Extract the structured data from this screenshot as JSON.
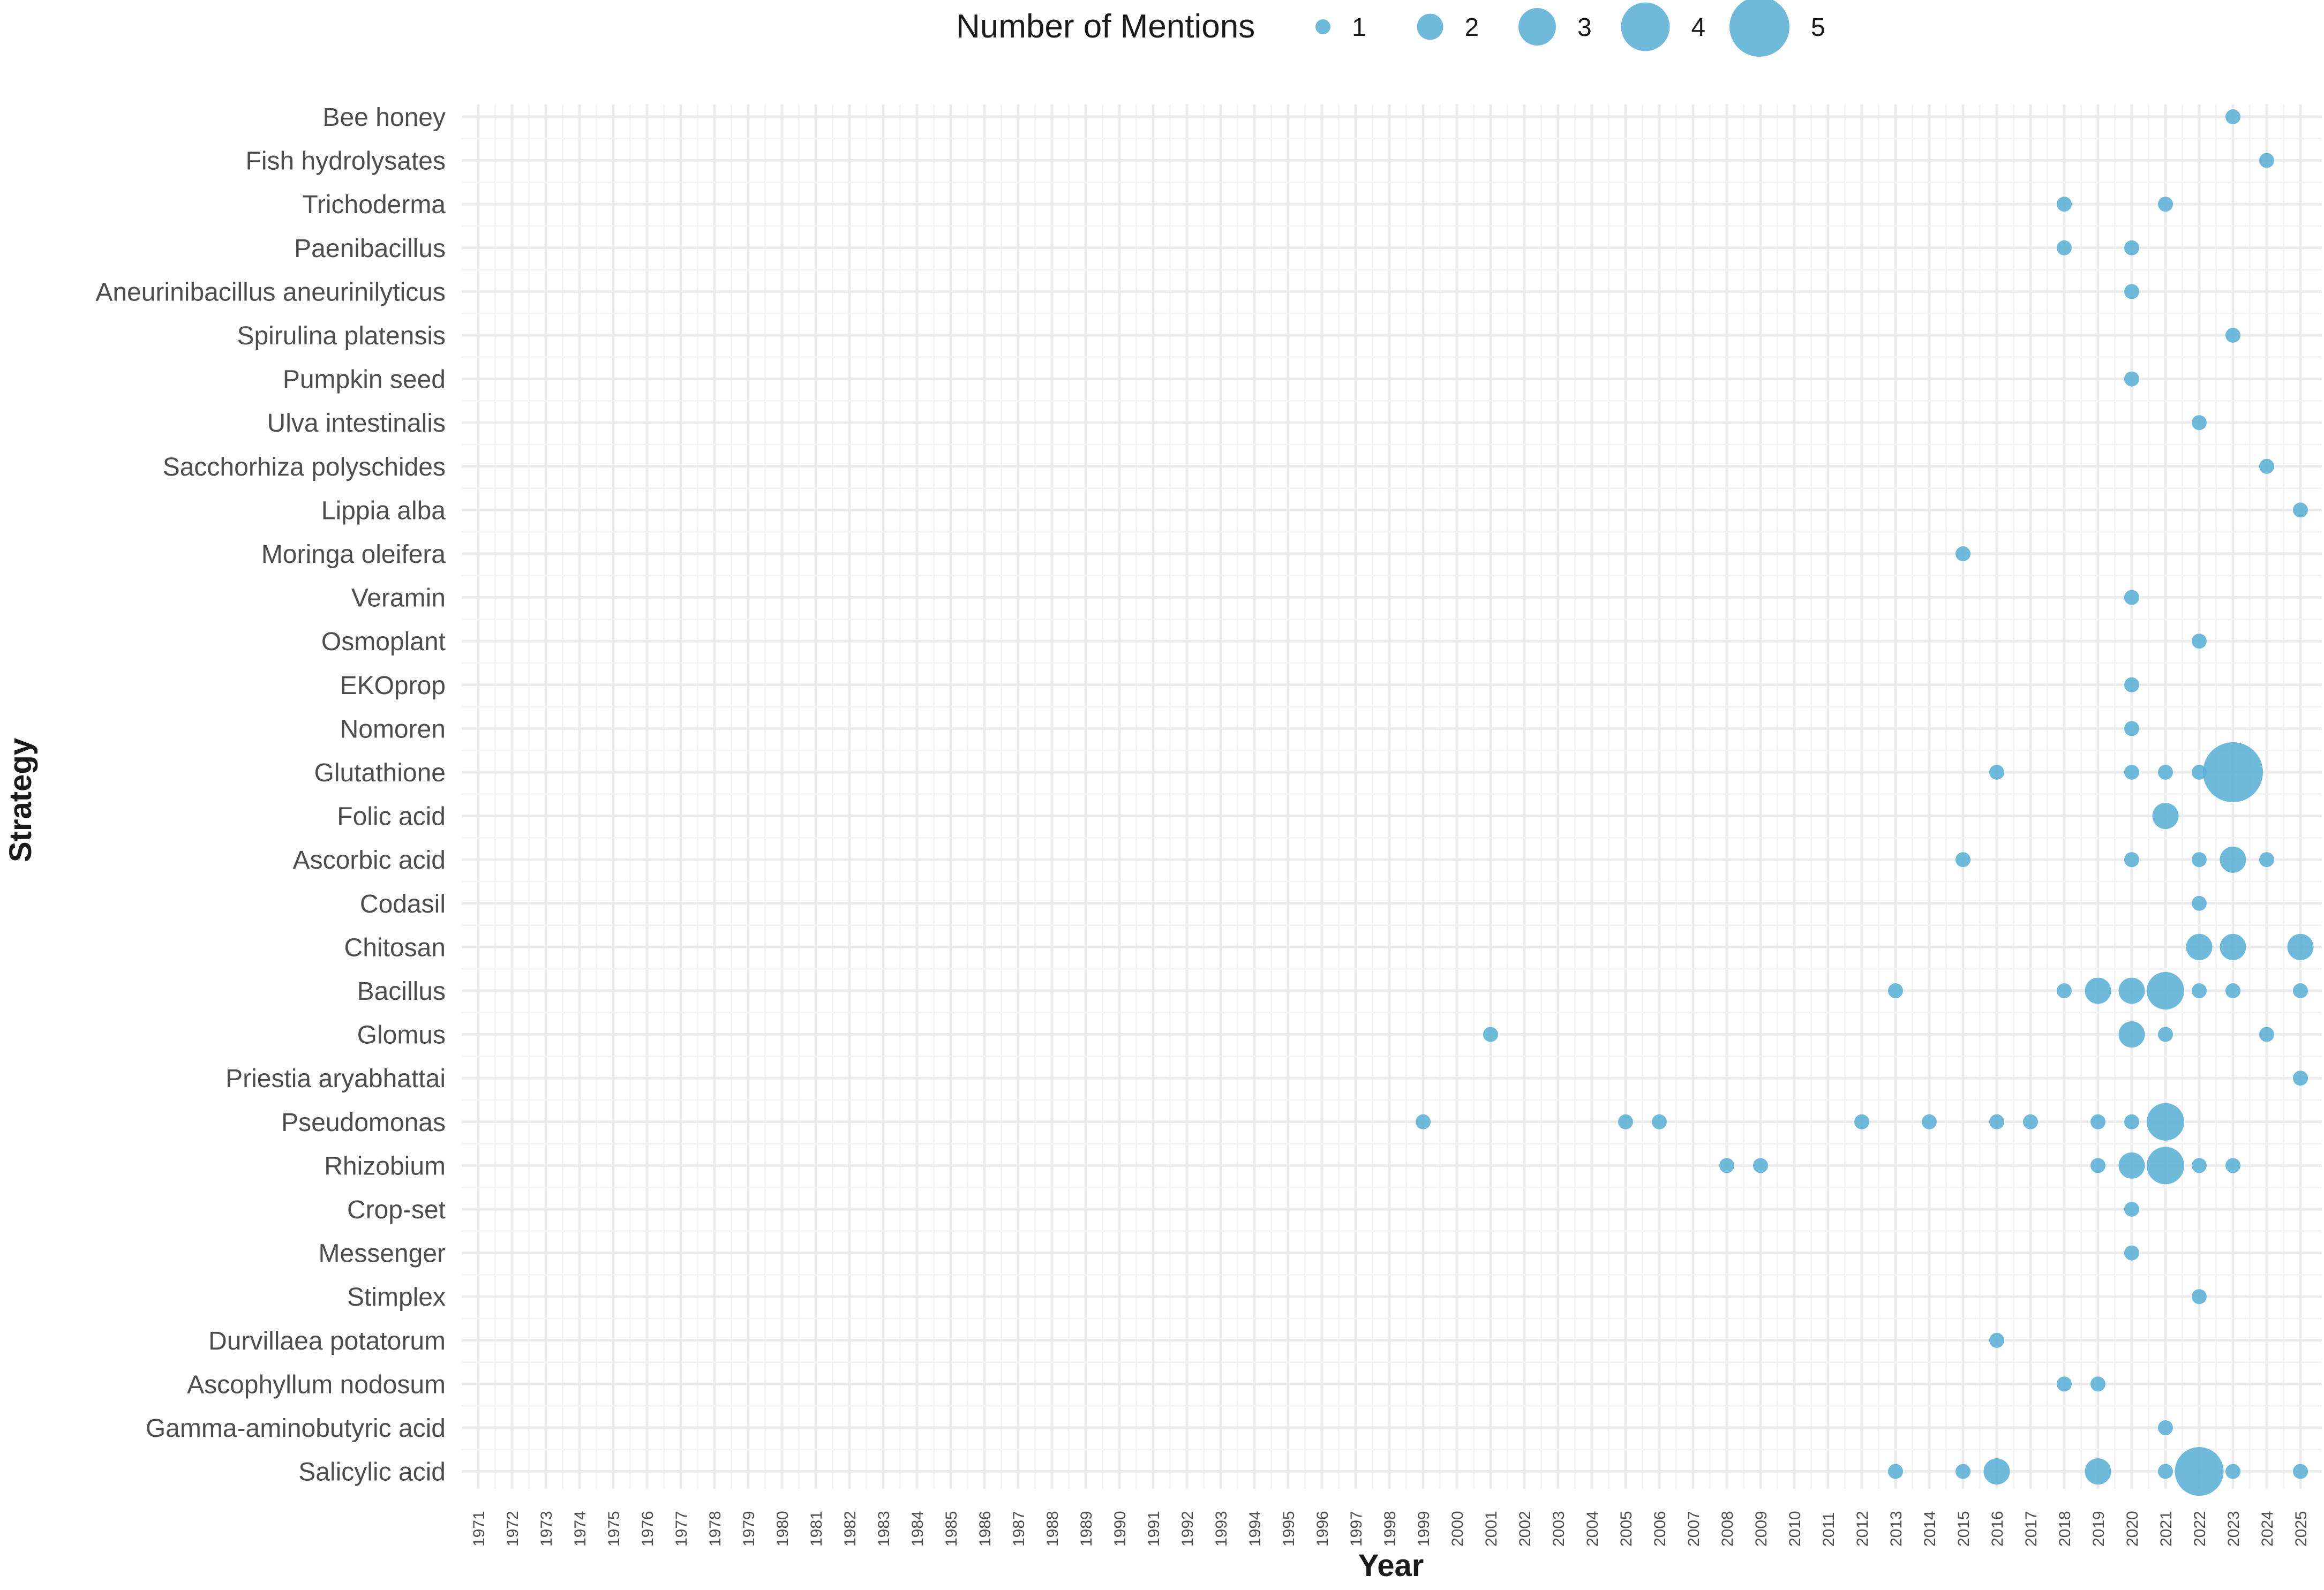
{
  "chart_data": {
    "type": "scatter",
    "title": "",
    "xlabel": "Year",
    "ylabel": "Strategy",
    "x_categories": [
      "1971",
      "1972",
      "1973",
      "1974",
      "1975",
      "1976",
      "1977",
      "1978",
      "1979",
      "1980",
      "1981",
      "1982",
      "1983",
      "1984",
      "1985",
      "1986",
      "1987",
      "1988",
      "1989",
      "1990",
      "1991",
      "1992",
      "1993",
      "1994",
      "1995",
      "1996",
      "1997",
      "1998",
      "1999",
      "2000",
      "2001",
      "2002",
      "2003",
      "2004",
      "2005",
      "2006",
      "2007",
      "2008",
      "2009",
      "2010",
      "2011",
      "2012",
      "2013",
      "2014",
      "2015",
      "2016",
      "2017",
      "2018",
      "2019",
      "2020",
      "2021",
      "2022",
      "2023",
      "2024",
      "2025"
    ],
    "y_categories": [
      "Bee honey",
      "Fish hydrolysates",
      "Trichoderma",
      "Paenibacillus",
      "Aneurinibacillus aneurinilyticus",
      "Spirulina platensis",
      "Pumpkin seed",
      "Ulva intestinalis",
      "Sacchorhiza polyschides",
      "Lippia alba",
      "Moringa oleifera",
      "Veramin",
      "Osmoplant",
      "EKOprop",
      "Nomoren",
      "Glutathione",
      "Folic acid",
      "Ascorbic acid",
      "Codasil",
      "Chitosan",
      "Bacillus",
      "Glomus",
      "Priestia aryabhattai",
      "Pseudomonas",
      "Rhizobium",
      "Crop-set",
      "Messenger",
      "Stimplex",
      "Durvillaea potatorum",
      "Ascophyllum nodosum",
      "Gamma-aminobutyric acid",
      "Salicylic acid"
    ],
    "size_legend": {
      "title": "Number of Mentions",
      "values": [
        1,
        2,
        3,
        4,
        5
      ],
      "labels": [
        "1",
        "2",
        "3",
        "4",
        "5"
      ],
      "placement": "top"
    },
    "grid": true,
    "color": "#5BAFD6",
    "points": [
      {
        "strategy": "Bee honey",
        "year": "2023",
        "mentions": 1
      },
      {
        "strategy": "Fish hydrolysates",
        "year": "2024",
        "mentions": 1
      },
      {
        "strategy": "Trichoderma",
        "year": "2018",
        "mentions": 1
      },
      {
        "strategy": "Trichoderma",
        "year": "2021",
        "mentions": 1
      },
      {
        "strategy": "Paenibacillus",
        "year": "2018",
        "mentions": 1
      },
      {
        "strategy": "Paenibacillus",
        "year": "2020",
        "mentions": 1
      },
      {
        "strategy": "Aneurinibacillus aneurinilyticus",
        "year": "2020",
        "mentions": 1
      },
      {
        "strategy": "Spirulina platensis",
        "year": "2023",
        "mentions": 1
      },
      {
        "strategy": "Pumpkin seed",
        "year": "2020",
        "mentions": 1
      },
      {
        "strategy": "Ulva intestinalis",
        "year": "2022",
        "mentions": 1
      },
      {
        "strategy": "Sacchorhiza polyschides",
        "year": "2024",
        "mentions": 1
      },
      {
        "strategy": "Lippia alba",
        "year": "2025",
        "mentions": 1
      },
      {
        "strategy": "Moringa oleifera",
        "year": "2015",
        "mentions": 1
      },
      {
        "strategy": "Veramin",
        "year": "2020",
        "mentions": 1
      },
      {
        "strategy": "Osmoplant",
        "year": "2022",
        "mentions": 1
      },
      {
        "strategy": "EKOprop",
        "year": "2020",
        "mentions": 1
      },
      {
        "strategy": "Nomoren",
        "year": "2020",
        "mentions": 1
      },
      {
        "strategy": "Glutathione",
        "year": "2016",
        "mentions": 1
      },
      {
        "strategy": "Glutathione",
        "year": "2020",
        "mentions": 1
      },
      {
        "strategy": "Glutathione",
        "year": "2021",
        "mentions": 1
      },
      {
        "strategy": "Glutathione",
        "year": "2022",
        "mentions": 1
      },
      {
        "strategy": "Glutathione",
        "year": "2023",
        "mentions": 5
      },
      {
        "strategy": "Folic acid",
        "year": "2021",
        "mentions": 2
      },
      {
        "strategy": "Ascorbic acid",
        "year": "2015",
        "mentions": 1
      },
      {
        "strategy": "Ascorbic acid",
        "year": "2020",
        "mentions": 1
      },
      {
        "strategy": "Ascorbic acid",
        "year": "2022",
        "mentions": 1
      },
      {
        "strategy": "Ascorbic acid",
        "year": "2023",
        "mentions": 2
      },
      {
        "strategy": "Ascorbic acid",
        "year": "2024",
        "mentions": 1
      },
      {
        "strategy": "Codasil",
        "year": "2022",
        "mentions": 1
      },
      {
        "strategy": "Chitosan",
        "year": "2022",
        "mentions": 2
      },
      {
        "strategy": "Chitosan",
        "year": "2023",
        "mentions": 2
      },
      {
        "strategy": "Chitosan",
        "year": "2025",
        "mentions": 2
      },
      {
        "strategy": "Bacillus",
        "year": "2013",
        "mentions": 1
      },
      {
        "strategy": "Bacillus",
        "year": "2018",
        "mentions": 1
      },
      {
        "strategy": "Bacillus",
        "year": "2019",
        "mentions": 2
      },
      {
        "strategy": "Bacillus",
        "year": "2020",
        "mentions": 2
      },
      {
        "strategy": "Bacillus",
        "year": "2021",
        "mentions": 3
      },
      {
        "strategy": "Bacillus",
        "year": "2022",
        "mentions": 1
      },
      {
        "strategy": "Bacillus",
        "year": "2023",
        "mentions": 1
      },
      {
        "strategy": "Bacillus",
        "year": "2025",
        "mentions": 1
      },
      {
        "strategy": "Glomus",
        "year": "2001",
        "mentions": 1
      },
      {
        "strategy": "Glomus",
        "year": "2020",
        "mentions": 2
      },
      {
        "strategy": "Glomus",
        "year": "2021",
        "mentions": 1
      },
      {
        "strategy": "Glomus",
        "year": "2024",
        "mentions": 1
      },
      {
        "strategy": "Priestia aryabhattai",
        "year": "2025",
        "mentions": 1
      },
      {
        "strategy": "Pseudomonas",
        "year": "1999",
        "mentions": 1
      },
      {
        "strategy": "Pseudomonas",
        "year": "2005",
        "mentions": 1
      },
      {
        "strategy": "Pseudomonas",
        "year": "2006",
        "mentions": 1
      },
      {
        "strategy": "Pseudomonas",
        "year": "2012",
        "mentions": 1
      },
      {
        "strategy": "Pseudomonas",
        "year": "2014",
        "mentions": 1
      },
      {
        "strategy": "Pseudomonas",
        "year": "2016",
        "mentions": 1
      },
      {
        "strategy": "Pseudomonas",
        "year": "2017",
        "mentions": 1
      },
      {
        "strategy": "Pseudomonas",
        "year": "2019",
        "mentions": 1
      },
      {
        "strategy": "Pseudomonas",
        "year": "2020",
        "mentions": 1
      },
      {
        "strategy": "Pseudomonas",
        "year": "2021",
        "mentions": 3
      },
      {
        "strategy": "Rhizobium",
        "year": "2008",
        "mentions": 1
      },
      {
        "strategy": "Rhizobium",
        "year": "2009",
        "mentions": 1
      },
      {
        "strategy": "Rhizobium",
        "year": "2019",
        "mentions": 1
      },
      {
        "strategy": "Rhizobium",
        "year": "2020",
        "mentions": 2
      },
      {
        "strategy": "Rhizobium",
        "year": "2021",
        "mentions": 3
      },
      {
        "strategy": "Rhizobium",
        "year": "2022",
        "mentions": 1
      },
      {
        "strategy": "Rhizobium",
        "year": "2023",
        "mentions": 1
      },
      {
        "strategy": "Crop-set",
        "year": "2020",
        "mentions": 1
      },
      {
        "strategy": "Messenger",
        "year": "2020",
        "mentions": 1
      },
      {
        "strategy": "Stimplex",
        "year": "2022",
        "mentions": 1
      },
      {
        "strategy": "Durvillaea potatorum",
        "year": "2016",
        "mentions": 1
      },
      {
        "strategy": "Ascophyllum nodosum",
        "year": "2018",
        "mentions": 1
      },
      {
        "strategy": "Ascophyllum nodosum",
        "year": "2019",
        "mentions": 1
      },
      {
        "strategy": "Gamma-aminobutyric acid",
        "year": "2021",
        "mentions": 1
      },
      {
        "strategy": "Salicylic acid",
        "year": "2013",
        "mentions": 1
      },
      {
        "strategy": "Salicylic acid",
        "year": "2015",
        "mentions": 1
      },
      {
        "strategy": "Salicylic acid",
        "year": "2016",
        "mentions": 2
      },
      {
        "strategy": "Salicylic acid",
        "year": "2019",
        "mentions": 2
      },
      {
        "strategy": "Salicylic acid",
        "year": "2021",
        "mentions": 1
      },
      {
        "strategy": "Salicylic acid",
        "year": "2022",
        "mentions": 4
      },
      {
        "strategy": "Salicylic acid",
        "year": "2023",
        "mentions": 1
      },
      {
        "strategy": "Salicylic acid",
        "year": "2025",
        "mentions": 1
      }
    ]
  }
}
